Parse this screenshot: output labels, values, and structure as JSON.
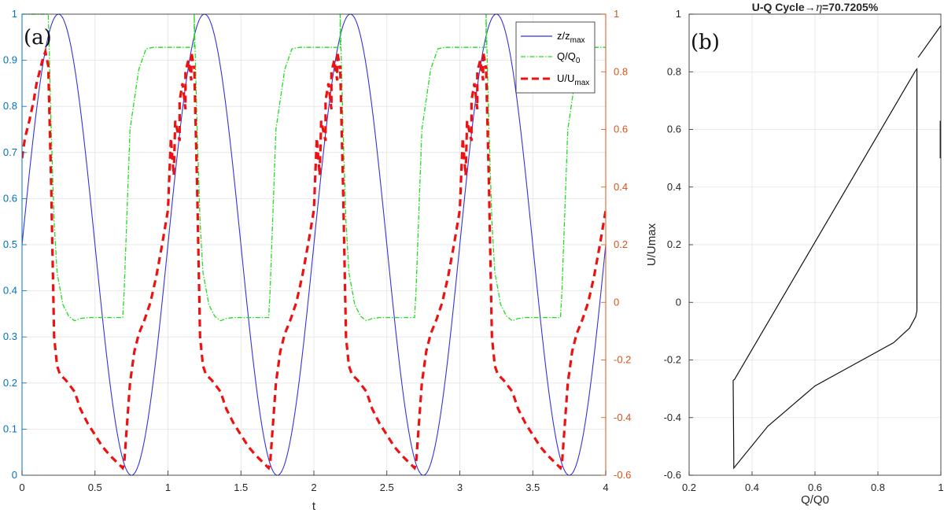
{
  "chart_data": [
    {
      "type": "line",
      "panel_label": "(a)",
      "xlabel": "t",
      "xlim": [
        0,
        4
      ],
      "xticks": [
        "0",
        "0.5",
        "1",
        "1.5",
        "2",
        "2.5",
        "3",
        "3.5",
        "4"
      ],
      "ylim_left": [
        0,
        1
      ],
      "yticks_left": [
        "0",
        "0.1",
        "0.2",
        "0.3",
        "0.4",
        "0.5",
        "0.6",
        "0.7",
        "0.8",
        "0.9",
        "1"
      ],
      "ylim_right": [
        -0.6,
        1
      ],
      "yticks_right": [
        "-0.6",
        "-0.4",
        "-0.2",
        "0",
        "0.2",
        "0.4",
        "0.6",
        "0.8",
        "1"
      ],
      "grid": true,
      "legend_position": "top-right",
      "colors": {
        "left_axis": "#0072BD",
        "right_axis": "#D95319",
        "z": "#3333dd",
        "q": "#22dd22",
        "u": "#ee1111"
      },
      "series": [
        {
          "name": "z/z_max",
          "axis": "left",
          "legend_main": "z/z",
          "legend_sub": "max",
          "style": "solid",
          "function": "0.5+0.5*sin(2*pi*t)",
          "period": 1
        },
        {
          "name": "Q/Q_0",
          "axis": "left",
          "legend_main": "Q/Q",
          "legend_sub": "0",
          "style": "dashdot",
          "period": 1,
          "x": [
            0,
            0.18,
            0.2,
            0.22,
            0.24,
            0.28,
            0.32,
            0.36,
            0.4,
            0.45,
            0.5,
            0.55,
            0.6,
            0.65,
            0.69,
            0.7,
            0.74,
            0.8,
            0.85,
            0.9,
            0.95,
            1.0,
            1.05,
            1.1,
            1.15,
            1.18
          ],
          "y": [
            1.0,
            1.0,
            0.75,
            0.55,
            0.44,
            0.37,
            0.345,
            0.335,
            0.34,
            0.342,
            0.342,
            0.342,
            0.342,
            0.342,
            0.342,
            0.4,
            0.75,
            0.88,
            0.925,
            0.928,
            0.928,
            0.928,
            0.928,
            0.928,
            0.928,
            0.928
          ]
        },
        {
          "name": "U/U_max",
          "axis": "right",
          "legend_main": "U/U",
          "legend_sub": "max",
          "style": "dashed",
          "period": 1,
          "x": [
            0,
            0.02,
            0.05,
            0.08,
            0.1,
            0.12,
            0.14,
            0.16,
            0.18,
            0.2,
            0.22,
            0.24,
            0.26,
            0.28,
            0.3,
            0.33,
            0.36,
            0.4,
            0.45,
            0.5,
            0.55,
            0.6,
            0.64,
            0.68,
            0.69,
            0.7,
            0.72,
            0.74,
            0.77,
            0.8,
            0.84,
            0.88,
            0.92,
            0.96,
            1.0,
            1.04,
            1.08,
            1.12,
            1.16,
            1.18
          ],
          "y": [
            0.5,
            0.57,
            0.63,
            0.7,
            0.76,
            0.8,
            0.84,
            0.87,
            0.82,
            0.4,
            -0.12,
            -0.22,
            -0.25,
            -0.26,
            -0.27,
            -0.29,
            -0.31,
            -0.37,
            -0.42,
            -0.46,
            -0.5,
            -0.53,
            -0.55,
            -0.57,
            -0.575,
            -0.56,
            -0.42,
            -0.28,
            -0.17,
            -0.11,
            -0.06,
            0.0,
            0.09,
            0.2,
            0.32,
            0.44,
            0.56,
            0.67,
            0.77,
            0.81
          ]
        }
      ]
    },
    {
      "type": "line",
      "panel_label": "(b)",
      "title_main": "U-Q Cycle",
      "title_arrow": "→",
      "title_eta": "η",
      "title_value": "=70.7205%",
      "xlabel": "Q/Q0",
      "ylabel": "U/Umax",
      "xlim": [
        0.2,
        1
      ],
      "ylim": [
        -0.6,
        1
      ],
      "xticks": [
        "0.2",
        "0.4",
        "0.6",
        "0.8",
        "1"
      ],
      "yticks": [
        "-0.6",
        "-0.4",
        "-0.2",
        "0",
        "0.2",
        "0.4",
        "0.6",
        "0.8",
        "1"
      ],
      "grid": true,
      "colors": {
        "line": "#111111"
      },
      "loop": {
        "x": [
          0.34,
          0.344,
          0.92,
          0.924,
          0.924,
          0.92,
          0.9,
          0.85,
          0.75,
          0.6,
          0.45,
          0.342,
          0.342,
          0.34,
          0.34
        ],
        "y": [
          -0.27,
          -0.268,
          0.805,
          0.81,
          -0.03,
          -0.05,
          -0.09,
          -0.14,
          -0.2,
          -0.29,
          -0.43,
          -0.575,
          -0.55,
          -0.28,
          -0.27
        ]
      },
      "extra_lines": [
        {
          "x": [
            0.928,
            1.0
          ],
          "y": [
            0.85,
            0.96
          ]
        },
        {
          "x": [
            0.998,
            0.998
          ],
          "y": [
            0.63,
            0.5
          ]
        }
      ]
    }
  ]
}
